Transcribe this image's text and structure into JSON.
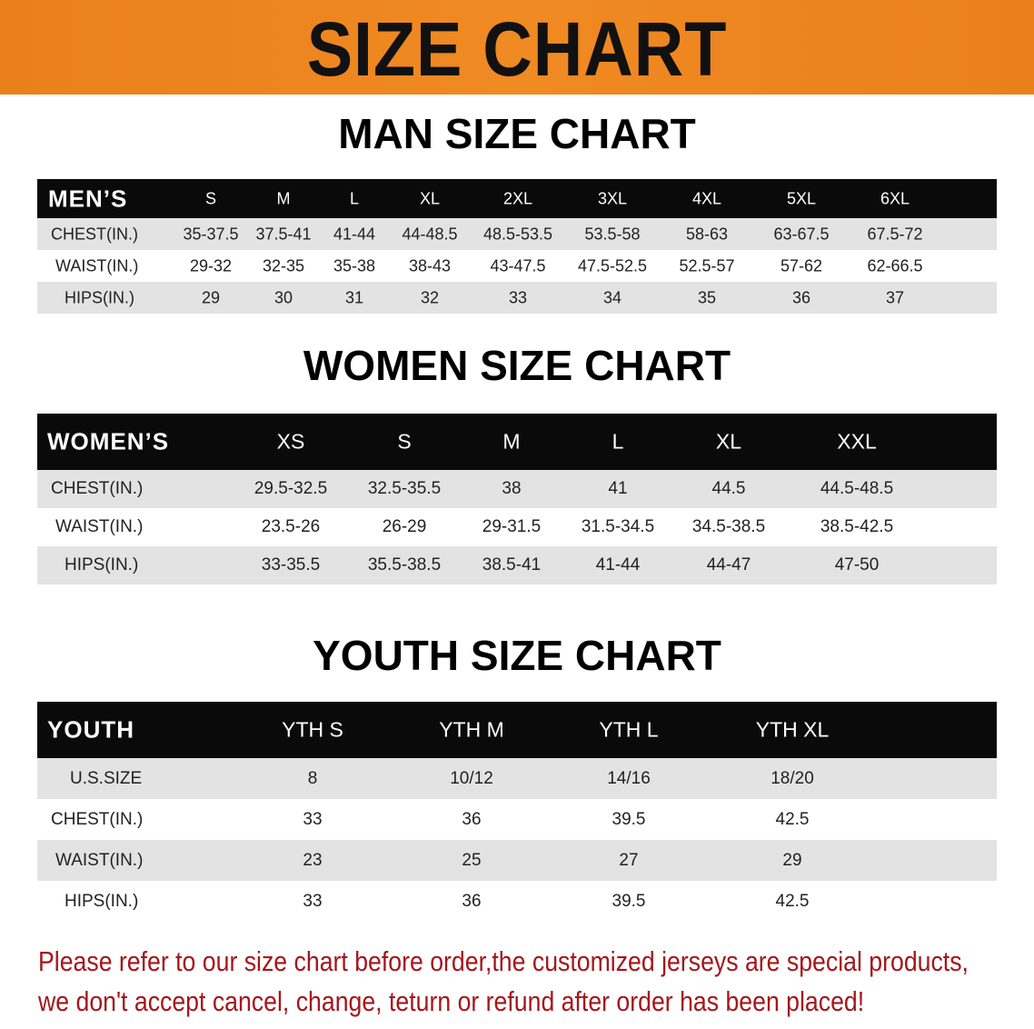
{
  "banner": {
    "title": "SIZE CHART",
    "color": "#ee851f"
  },
  "men": {
    "title": "MAN SIZE CHART",
    "header": [
      "MEN’S",
      "S",
      "M",
      "L",
      "XL",
      "2XL",
      "3XL",
      "4XL",
      "5XL",
      "6XL"
    ],
    "rows": [
      [
        "CHEST(IN.)",
        "35-37.5",
        "37.5-41",
        "41-44",
        "44-48.5",
        "48.5-53.5",
        "53.5-58",
        "58-63",
        "63-67.5",
        "67.5-72"
      ],
      [
        "WAIST(IN.)",
        "29-32",
        "32-35",
        "35-38",
        "38-43",
        "43-47.5",
        "47.5-52.5",
        "52.5-57",
        "57-62",
        "62-66.5"
      ],
      [
        "HIPS(IN.)",
        "29",
        "30",
        "31",
        "32",
        "33",
        "34",
        "35",
        "36",
        "37"
      ]
    ]
  },
  "women": {
    "title": "WOMEN SIZE CHART",
    "header": [
      "WOMEN’S",
      "XS",
      "S",
      "M",
      "L",
      "XL",
      "XXL"
    ],
    "rows": [
      [
        "CHEST(IN.)",
        "29.5-32.5",
        "32.5-35.5",
        "38",
        "41",
        "44.5",
        "44.5-48.5"
      ],
      [
        "WAIST(IN.)",
        "23.5-26",
        "26-29",
        "29-31.5",
        "31.5-34.5",
        "34.5-38.5",
        "38.5-42.5"
      ],
      [
        "HIPS(IN.)",
        "33-35.5",
        "35.5-38.5",
        "38.5-41",
        "41-44",
        "44-47",
        "47-50"
      ]
    ]
  },
  "youth": {
    "title": "YOUTH SIZE CHART",
    "header": [
      "YOUTH",
      "YTH S",
      "YTH M",
      "YTH L",
      "YTH XL"
    ],
    "rows": [
      [
        "U.S.SIZE",
        "8",
        "10/12",
        "14/16",
        "18/20"
      ],
      [
        "CHEST(IN.)",
        "33",
        "36",
        "39.5",
        "42.5"
      ],
      [
        "WAIST(IN.)",
        "23",
        "25",
        "27",
        "29"
      ],
      [
        "HIPS(IN.)",
        "33",
        "36",
        "39.5",
        "42.5"
      ]
    ]
  },
  "note": {
    "line1": "Please refer to our size chart before order,the customized jerseys are special products,",
    "line2": "we don't accept cancel, change, teturn or refund after order has been placed!",
    "color": "#a4171c"
  }
}
